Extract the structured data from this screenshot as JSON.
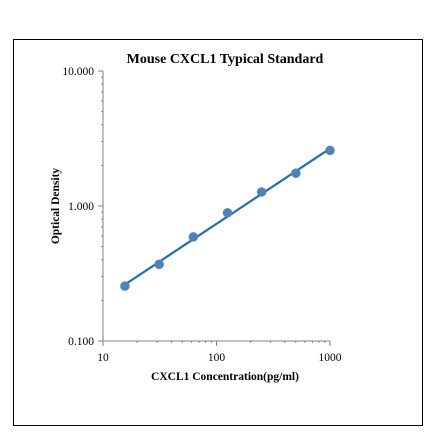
{
  "chart_data": {
    "type": "scatter",
    "title": "Mouse CXCL1 Typical Standard",
    "xlabel": "CXCL1 Concentration(pg/ml)",
    "ylabel": "Optical Density",
    "x_scale": "log",
    "y_scale": "log",
    "xlim": [
      10,
      1000
    ],
    "ylim": [
      0.1,
      10
    ],
    "x_ticks": [
      "10",
      "100",
      "1000"
    ],
    "y_ticks": [
      "0.100",
      "1.000",
      "10.000"
    ],
    "grid": false,
    "series": [
      {
        "points": [
          {
            "x": 15.6,
            "y": 0.255
          },
          {
            "x": 31.25,
            "y": 0.37
          },
          {
            "x": 62.5,
            "y": 0.59
          },
          {
            "x": 125,
            "y": 0.89
          },
          {
            "x": 250,
            "y": 1.27
          },
          {
            "x": 500,
            "y": 1.75
          },
          {
            "x": 1000,
            "y": 2.58
          }
        ],
        "trendline": {
          "type": "power",
          "from": 15.6,
          "to": 1000
        }
      }
    ],
    "colors": {
      "marker": "#4f81bd",
      "trendline": "#1f70b8",
      "axis": "#808080"
    }
  }
}
